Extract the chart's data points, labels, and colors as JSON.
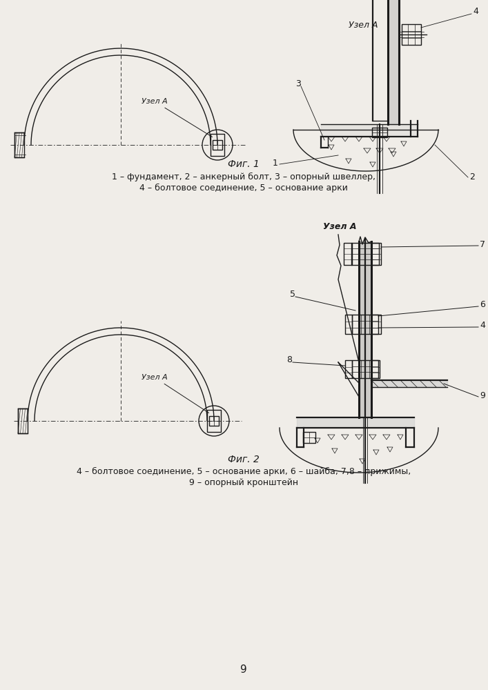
{
  "bg_color": "#f0ede8",
  "line_color": "#1a1a1a",
  "fig1_caption": "Фиг. 1",
  "fig1_legend1": "1 – фундамент, 2 – анкерный болт, 3 – опорный швеллер,",
  "fig1_legend2": "4 – болтовое соединение, 5 – основание арки",
  "fig2_caption": "Фиг. 2",
  "fig2_legend1": "4 – болтовое соединение, 5 – основание арки, 6 – шайба, 7,8 – прижимы,",
  "fig2_legend2": "9 – опорный кронштейн",
  "page_number": "9",
  "uzlA_label": "Узел А"
}
